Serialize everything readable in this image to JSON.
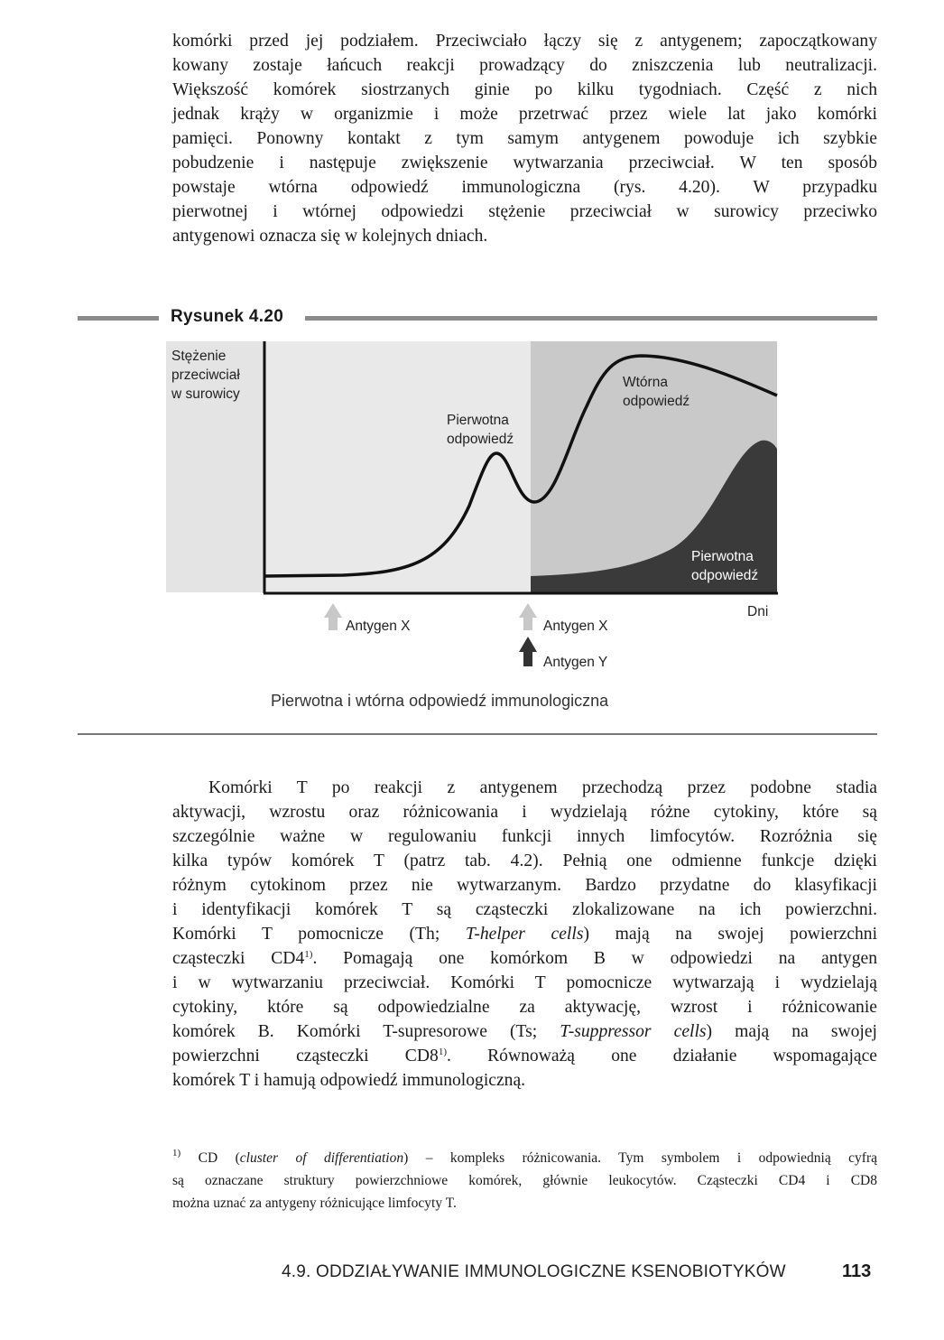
{
  "paragraph1": [
    [
      {
        "t": "komórki przed jej podziałem. Przeciwciało łączy się z antygenem; zapoczątkowany"
      }
    ],
    [
      {
        "t": "kowany zostaje łańcuch reakcji prowadzący do zniszczenia lub neutralizacji."
      }
    ],
    [
      {
        "t": "Większość komórek siostrzanych ginie po kilku tygodniach. Część z nich"
      }
    ],
    [
      {
        "t": "jednak krąży w organizmie i może przetrwać przez wiele lat jako komórki"
      }
    ],
    [
      {
        "t": "pamięci. Ponowny kontakt z tym samym antygenem powoduje ich szybkie"
      }
    ],
    [
      {
        "t": "pobudzenie i następuje zwiększenie wytwarzania przeciwciał. W ten sposób"
      }
    ],
    [
      {
        "t": "powstaje wtórna odpowiedź immunologiczna (rys. 4.20). W przypadku"
      }
    ],
    [
      {
        "t": "pierwotnej i wtórnej odpowiedzi stężenie przeciwciał w surowicy przeciwko"
      }
    ],
    [
      {
        "t": "antygenowi oznacza się w kolejnych dniach."
      }
    ]
  ],
  "figure": {
    "label": "Rysunek 4.20",
    "caption": "Pierwotna i wtórna odpowiedź immunologiczna",
    "y_axis_label": [
      "Stężenie",
      "przeciwciał",
      "w surowicy"
    ],
    "x_axis_label": "Dni",
    "label_primary_1": [
      "Pierwotna",
      "odpowiedź"
    ],
    "label_secondary": [
      "Wtórna",
      "odpowiedź"
    ],
    "label_primary_2": [
      "Pierwotna",
      "odpowiedź"
    ],
    "arrows": [
      {
        "label": "Antygen X",
        "color": "#c8c8c8"
      },
      {
        "label": "Antygen X",
        "color": "#c8c8c8"
      },
      {
        "label": "Antygen Y",
        "color": "#333333"
      }
    ],
    "colors": {
      "panel_left": "#e9e9e9",
      "panel_right": "#c9c9c9",
      "dark_area": "#3a3a3a",
      "curve": "#111111"
    }
  },
  "paragraph2": [
    [
      {
        "t": "Komórki T po reakcji z antygenem przechodzą przez podobne stadia"
      }
    ],
    [
      {
        "t": "aktywacji, wzrostu oraz różnicowania i wydzielają różne cytokiny, które są"
      }
    ],
    [
      {
        "t": "szczególnie ważne w regulowaniu funkcji innych limfocytów. Rozróżnia się"
      }
    ],
    [
      {
        "t": "kilka typów komórek T (patrz tab. 4.2). Pełnią one odmienne funkcje dzięki"
      }
    ],
    [
      {
        "t": "różnym cytokinom przez nie wytwarzanym. Bardzo przydatne do klasyfikacji"
      }
    ],
    [
      {
        "t": "i identyfikacji komórek T są cząsteczki zlokalizowane na ich powierzchni."
      }
    ],
    [
      {
        "t": "Komórki T pomocnicze (Th; "
      },
      {
        "t": "T-helper cells",
        "s": "it"
      },
      {
        "t": ") mają na swojej powierzchni"
      }
    ],
    [
      {
        "t": "cząsteczki CD4"
      },
      {
        "t": "1)",
        "s": "sup"
      },
      {
        "t": ". Pomagają one komórkom B w odpowiedzi na antygen"
      }
    ],
    [
      {
        "t": "i w wytwarzaniu przeciwciał. Komórki T pomocnicze wytwarzają i wydzielają"
      }
    ],
    [
      {
        "t": "cytokiny, które są odpowiedzialne za aktywację, wzrost i różnicowanie"
      }
    ],
    [
      {
        "t": "komórek B. Komórki T-supresorowe (Ts; "
      },
      {
        "t": "T-suppressor cells",
        "s": "it"
      },
      {
        "t": ") mają na swojej"
      }
    ],
    [
      {
        "t": "powierzchni cząsteczki CD8"
      },
      {
        "t": "1)",
        "s": "sup"
      },
      {
        "t": ". Równoważą one działanie wspomagające"
      }
    ],
    [
      {
        "t": "komórek T i hamują odpowiedź immunologiczną."
      }
    ]
  ],
  "footnote": [
    [
      {
        "t": "1)",
        "s": "sup"
      },
      {
        "t": "      CD ("
      },
      {
        "t": "cluster of differentiation",
        "s": "it"
      },
      {
        "t": ") – kompleks różnicowania. Tym symbolem i odpowiednią cyfrą"
      }
    ],
    [
      {
        "t": "są oznaczane struktury powierzchniowe komórek, głównie leukocytów. Cząsteczki CD4 i CD8"
      }
    ],
    [
      {
        "t": "można uznać za antygeny różnicujące limfocyty T."
      }
    ]
  ],
  "footer": {
    "title": "4.9. ODDZIAŁYWANIE IMMUNOLOGICZNE KSENOBIOTYKÓW",
    "page": "113"
  }
}
